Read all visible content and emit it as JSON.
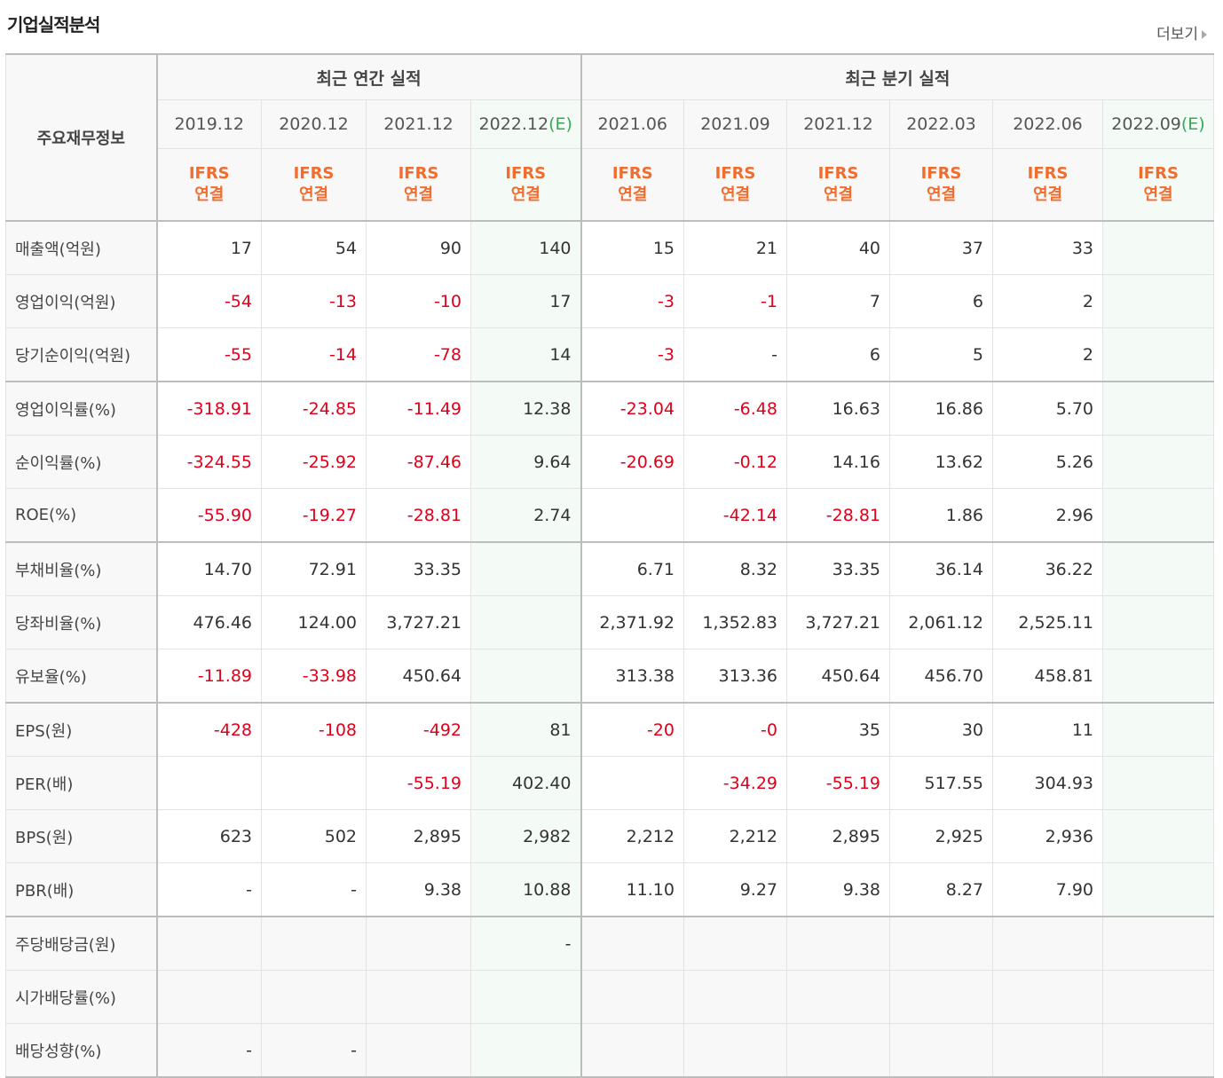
{
  "section_title": "기업실적분석",
  "more_label": "더보기",
  "corner_label": "주요재무정보",
  "groups": {
    "annual": "최근 연간 실적",
    "quarterly": "최근 분기 실적"
  },
  "periods": [
    {
      "label": "2019.12",
      "est": ""
    },
    {
      "label": "2020.12",
      "est": ""
    },
    {
      "label": "2021.12",
      "est": ""
    },
    {
      "label": "2022.12",
      "est": "(E)"
    },
    {
      "label": "2021.06",
      "est": ""
    },
    {
      "label": "2021.09",
      "est": ""
    },
    {
      "label": "2021.12",
      "est": ""
    },
    {
      "label": "2022.03",
      "est": ""
    },
    {
      "label": "2022.06",
      "est": ""
    },
    {
      "label": "2022.09",
      "est": "(E)"
    }
  ],
  "ifrs": {
    "line1": "IFRS",
    "line2": "연결"
  },
  "colors": {
    "negative": "#e0001b",
    "ifrs": "#f26c2e",
    "estimate": "#3aa657"
  },
  "rows": [
    {
      "label": "매출액(억원)",
      "values": [
        "17",
        "54",
        "90",
        "140",
        "15",
        "21",
        "40",
        "37",
        "33",
        ""
      ]
    },
    {
      "label": "영업이익(억원)",
      "values": [
        "-54",
        "-13",
        "-10",
        "17",
        "-3",
        "-1",
        "7",
        "6",
        "2",
        ""
      ]
    },
    {
      "label": "당기순이익(억원)",
      "values": [
        "-55",
        "-14",
        "-78",
        "14",
        "-3",
        "-",
        "6",
        "5",
        "2",
        ""
      ]
    },
    {
      "label": "영업이익률(%)",
      "values": [
        "-318.91",
        "-24.85",
        "-11.49",
        "12.38",
        "-23.04",
        "-6.48",
        "16.63",
        "16.86",
        "5.70",
        ""
      ]
    },
    {
      "label": "순이익률(%)",
      "values": [
        "-324.55",
        "-25.92",
        "-87.46",
        "9.64",
        "-20.69",
        "-0.12",
        "14.16",
        "13.62",
        "5.26",
        ""
      ]
    },
    {
      "label": "ROE(%)",
      "values": [
        "-55.90",
        "-19.27",
        "-28.81",
        "2.74",
        "",
        "-42.14",
        "-28.81",
        "1.86",
        "2.96",
        ""
      ]
    },
    {
      "label": "부채비율(%)",
      "values": [
        "14.70",
        "72.91",
        "33.35",
        "",
        "6.71",
        "8.32",
        "33.35",
        "36.14",
        "36.22",
        ""
      ]
    },
    {
      "label": "당좌비율(%)",
      "values": [
        "476.46",
        "124.00",
        "3,727.21",
        "",
        "2,371.92",
        "1,352.83",
        "3,727.21",
        "2,061.12",
        "2,525.11",
        ""
      ]
    },
    {
      "label": "유보율(%)",
      "values": [
        "-11.89",
        "-33.98",
        "450.64",
        "",
        "313.38",
        "313.36",
        "450.64",
        "456.70",
        "458.81",
        ""
      ]
    },
    {
      "label": "EPS(원)",
      "values": [
        "-428",
        "-108",
        "-492",
        "81",
        "-20",
        "-0",
        "35",
        "30",
        "11",
        ""
      ]
    },
    {
      "label": "PER(배)",
      "values": [
        "",
        "",
        "-55.19",
        "402.40",
        "",
        "-34.29",
        "-55.19",
        "517.55",
        "304.93",
        ""
      ]
    },
    {
      "label": "BPS(원)",
      "values": [
        "623",
        "502",
        "2,895",
        "2,982",
        "2,212",
        "2,212",
        "2,895",
        "2,925",
        "2,936",
        ""
      ]
    },
    {
      "label": "PBR(배)",
      "values": [
        "-",
        "-",
        "9.38",
        "10.88",
        "11.10",
        "9.27",
        "9.38",
        "8.27",
        "7.90",
        ""
      ]
    },
    {
      "label": "주당배당금(원)",
      "values": [
        "",
        "",
        "",
        "-",
        "",
        "",
        "",
        "",
        "",
        ""
      ]
    },
    {
      "label": "시가배당률(%)",
      "values": [
        "",
        "",
        "",
        "",
        "",
        "",
        "",
        "",
        "",
        ""
      ]
    },
    {
      "label": "배당성향(%)",
      "values": [
        "-",
        "-",
        "",
        "",
        "",
        "",
        "",
        "",
        "",
        ""
      ]
    }
  ]
}
